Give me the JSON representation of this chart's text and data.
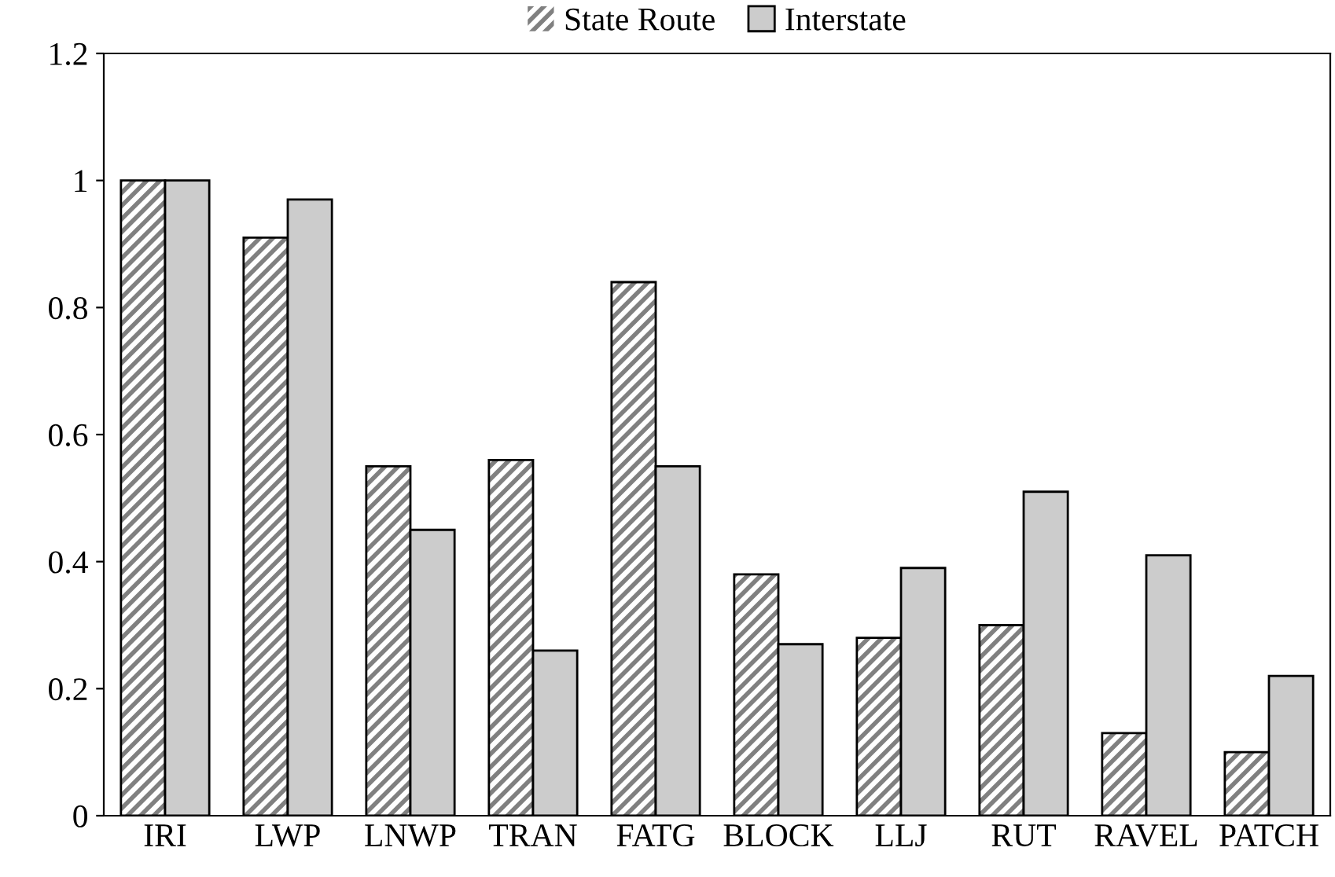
{
  "chart_data": {
    "type": "bar",
    "categories": [
      "IRI",
      "LWP",
      "LNWP",
      "TRAN",
      "FATG",
      "BLOCK",
      "LLJ",
      "RUT",
      "RAVEL",
      "PATCH"
    ],
    "series": [
      {
        "name": "State Route",
        "color": "#808080",
        "values": [
          1.0,
          0.91,
          0.55,
          0.56,
          0.84,
          0.38,
          0.28,
          0.3,
          0.13,
          0.1
        ]
      },
      {
        "name": "Interstate",
        "color": "#cccccc",
        "values": [
          1.0,
          0.97,
          0.45,
          0.26,
          0.55,
          0.27,
          0.39,
          0.51,
          0.41,
          0.22
        ]
      }
    ],
    "ylim": [
      0,
      1.2
    ],
    "yticks": [
      0,
      {
        "value": 0.2,
        "label": "0.2"
      },
      {
        "value": 0.4,
        "label": "0.4"
      },
      {
        "value": 0.6,
        "label": "0.6"
      },
      {
        "value": 0.8,
        "label": "0.8"
      },
      {
        "value": 1,
        "label": "1"
      },
      {
        "value": 1.2,
        "label": "1.2"
      }
    ],
    "legend": "top",
    "grid": false
  }
}
